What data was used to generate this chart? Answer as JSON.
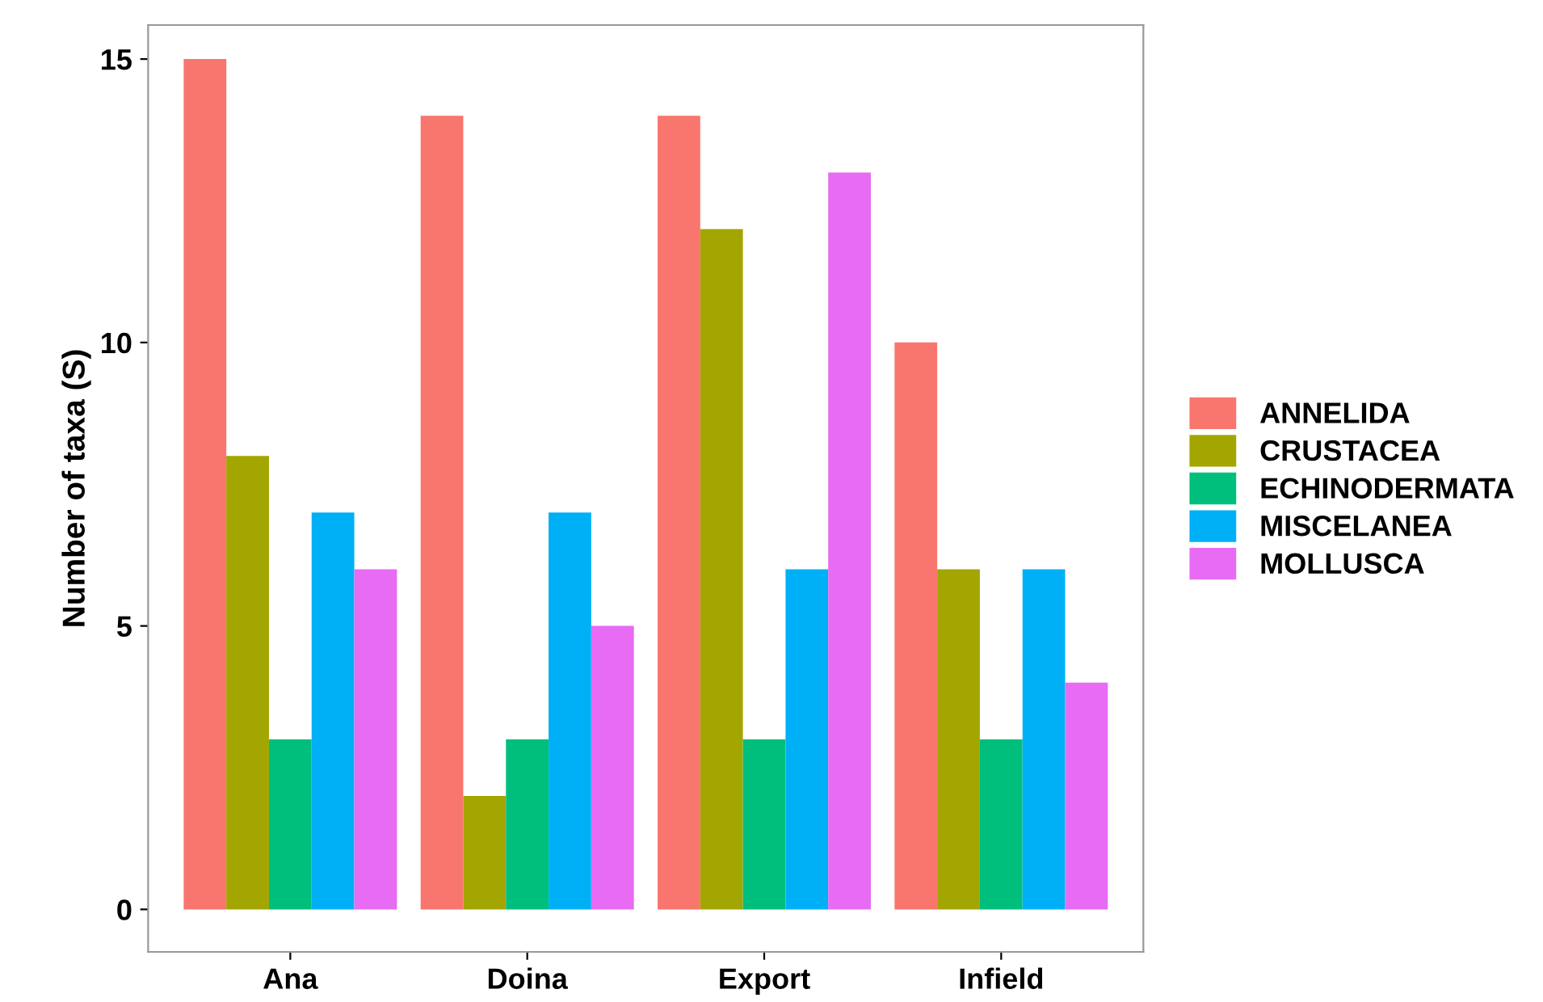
{
  "chart_data": {
    "type": "bar",
    "ylabel": "Number of taxa (S)",
    "categories": [
      "Ana",
      "Doina",
      "Export",
      "Infield"
    ],
    "series": [
      {
        "name": "ANNELIDA",
        "color": "#f8766d",
        "values": [
          15,
          14,
          14,
          10
        ]
      },
      {
        "name": "CRUSTACEA",
        "color": "#a3a500",
        "values": [
          8,
          2,
          12,
          6
        ]
      },
      {
        "name": "ECHINODERMATA",
        "color": "#00bf7d",
        "values": [
          3,
          3,
          3,
          3
        ]
      },
      {
        "name": "MISCELANEA",
        "color": "#00b0f6",
        "values": [
          7,
          7,
          6,
          6
        ]
      },
      {
        "name": "MOLLUSCA",
        "color": "#e76bf3",
        "values": [
          6,
          5,
          13,
          4
        ]
      }
    ],
    "ylim": [
      -0.75,
      15.6
    ],
    "yticks": [
      0,
      5,
      10,
      15
    ],
    "grid": false,
    "legend": "right"
  }
}
